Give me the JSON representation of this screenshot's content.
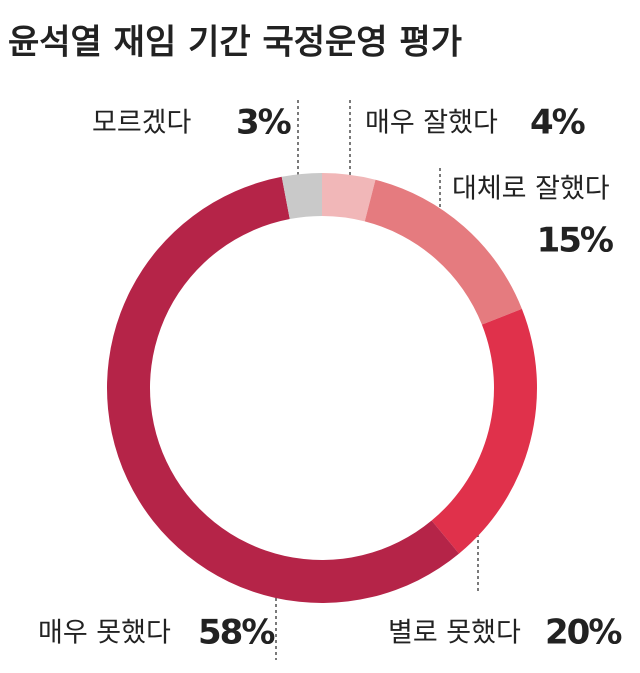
{
  "chart_data": {
    "type": "donut",
    "title": "윤석열 재임 기간 국정운영 평가",
    "categories": [
      "매우 잘했다",
      "대체로 잘했다",
      "별로 못했다",
      "매우 못했다",
      "모르겠다"
    ],
    "values": [
      4,
      15,
      20,
      58,
      3
    ],
    "value_labels": [
      "4%",
      "15%",
      "20%",
      "58%",
      "3%"
    ],
    "colors": [
      "#f1b7b8",
      "#e57b7f",
      "#e0314b",
      "#b52448",
      "#c9c9c9"
    ]
  }
}
